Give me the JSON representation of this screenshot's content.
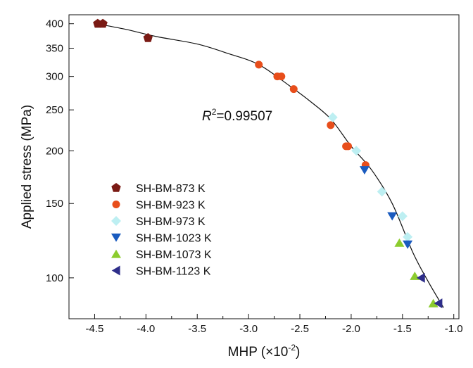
{
  "chart_data": {
    "type": "scatter",
    "xlabel": "MHP (×10",
    "xlabel_exponent": "-2",
    "xlabel_close": ")",
    "ylabel": "Applied stress (MPa)",
    "xlim": [
      -4.75,
      -0.95
    ],
    "ylim": [
      80,
      420
    ],
    "y_scale": "log",
    "x_ticks": [
      -4.5,
      -4.0,
      -3.5,
      -3.0,
      -2.5,
      -2.0,
      -1.5,
      -1.0
    ],
    "x_tick_labels": [
      "-4.5",
      "-4.0",
      "-3.5",
      "-3.0",
      "-2.5",
      "-2.0",
      "-1.5",
      "-1.0"
    ],
    "y_ticks": [
      100,
      150,
      200,
      250,
      300,
      350,
      400
    ],
    "y_tick_labels": [
      "100",
      "150",
      "200",
      "250",
      "300",
      "350",
      "400"
    ],
    "grid": false,
    "legend_position": "left-middle",
    "annotation": {
      "prefix": "R",
      "superscript": "2",
      "text": "=0.99507"
    },
    "series": [
      {
        "name": "SH-BM-873 K",
        "marker": "pentagon",
        "color": "#7a1a14",
        "points": [
          [
            -4.47,
            400
          ],
          [
            -4.42,
            400
          ],
          [
            -3.98,
            370
          ]
        ]
      },
      {
        "name": "SH-BM-923 K",
        "marker": "circle",
        "color": "#e84e1b",
        "points": [
          [
            -2.9,
            320
          ],
          [
            -2.72,
            300
          ],
          [
            -2.68,
            300
          ],
          [
            -2.56,
            280
          ],
          [
            -2.2,
            230
          ],
          [
            -2.05,
            205
          ],
          [
            -2.03,
            205
          ],
          [
            -1.86,
            185
          ]
        ]
      },
      {
        "name": "SH-BM-973 K",
        "marker": "diamond",
        "color": "#bdeff2",
        "points": [
          [
            -2.18,
            240
          ],
          [
            -1.95,
            200
          ],
          [
            -1.7,
            160
          ],
          [
            -1.5,
            140
          ],
          [
            -1.45,
            125
          ]
        ]
      },
      {
        "name": "SH-BM-1023 K",
        "marker": "triangle-down",
        "color": "#1a5bbf",
        "points": [
          [
            -1.87,
            180
          ],
          [
            -1.6,
            140
          ],
          [
            -1.45,
            120
          ]
        ]
      },
      {
        "name": "SH-BM-1073 K",
        "marker": "triangle-up",
        "color": "#8ccc2e",
        "points": [
          [
            -1.53,
            121
          ],
          [
            -1.38,
            101
          ],
          [
            -1.2,
            87
          ]
        ]
      },
      {
        "name": "SH-BM-1123 K",
        "marker": "triangle-left",
        "color": "#2e2e8a",
        "points": [
          [
            -1.32,
            100
          ],
          [
            -1.15,
            87
          ]
        ]
      }
    ],
    "fit_curve": [
      [
        -4.5,
        401
      ],
      [
        -4.2,
        388
      ],
      [
        -3.9,
        373
      ],
      [
        -3.5,
        358
      ],
      [
        -3.2,
        340
      ],
      [
        -2.9,
        320
      ],
      [
        -2.6,
        285
      ],
      [
        -2.4,
        262
      ],
      [
        -2.2,
        238
      ],
      [
        -2.0,
        205
      ],
      [
        -1.8,
        180
      ],
      [
        -1.6,
        150
      ],
      [
        -1.4,
        115
      ],
      [
        -1.25,
        98
      ],
      [
        -1.1,
        85
      ]
    ]
  }
}
